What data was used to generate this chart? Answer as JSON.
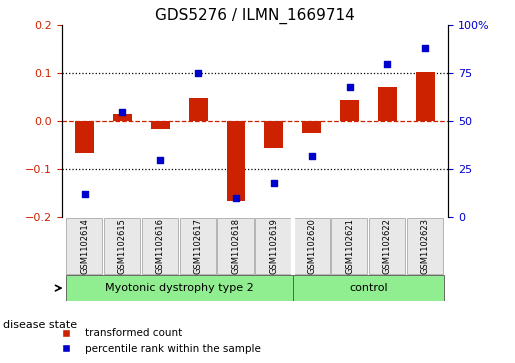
{
  "title": "GDS5276 / ILMN_1669714",
  "samples": [
    "GSM1102614",
    "GSM1102615",
    "GSM1102616",
    "GSM1102617",
    "GSM1102618",
    "GSM1102619",
    "GSM1102620",
    "GSM1102621",
    "GSM1102622",
    "GSM1102623"
  ],
  "red_values": [
    -0.065,
    0.015,
    -0.015,
    0.048,
    -0.165,
    -0.055,
    -0.025,
    0.045,
    0.072,
    0.102
  ],
  "blue_values": [
    12,
    55,
    30,
    75,
    10,
    18,
    32,
    68,
    80,
    88
  ],
  "disease_groups": [
    {
      "label": "Myotonic dystrophy type 2",
      "start": 0,
      "end": 6,
      "color": "#90ee90"
    },
    {
      "label": "control",
      "start": 6,
      "end": 10,
      "color": "#90ee90"
    }
  ],
  "left_ylim": [
    -0.2,
    0.2
  ],
  "right_ylim": [
    0,
    100
  ],
  "left_yticks": [
    -0.2,
    -0.1,
    0.0,
    0.1,
    0.2
  ],
  "right_yticks": [
    0,
    25,
    50,
    75,
    100
  ],
  "right_yticklabels": [
    "0",
    "25",
    "50",
    "75",
    "100%"
  ],
  "red_color": "#cc2200",
  "blue_color": "#0000cc",
  "dotted_line_color": "#000000",
  "bar_width": 0.5,
  "legend_red": "transformed count",
  "legend_blue": "percentile rank within the sample",
  "disease_state_label": "disease state",
  "group_divider": 6,
  "bg_color": "#e8e8e8"
}
